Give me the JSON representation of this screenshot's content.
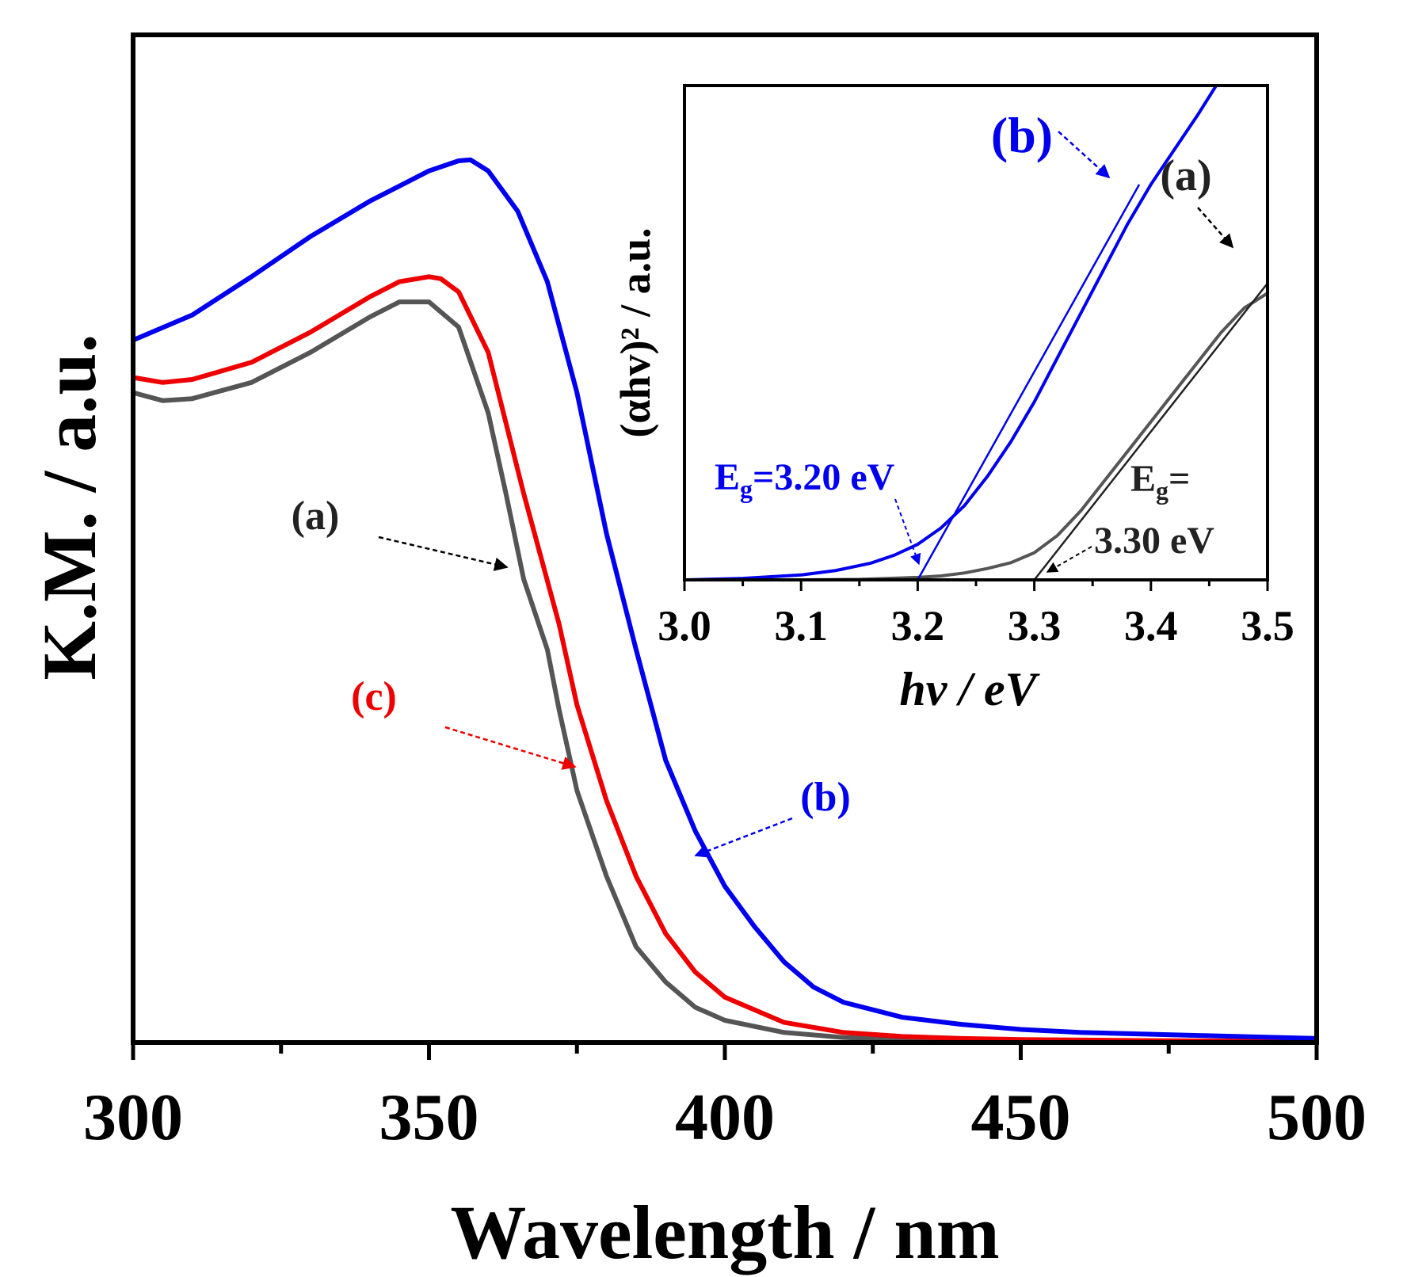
{
  "colors": {
    "a": "#555555",
    "b": "#0000ee",
    "c": "#ee0000",
    "axis": "#000000"
  },
  "chart_data": [
    {
      "type": "line",
      "xlabel": "Wavelength / nm",
      "ylabel": "K.M. / a.u.",
      "xlim": [
        300,
        500
      ],
      "ylim": [
        0,
        1
      ],
      "xticks": [
        "300",
        "350",
        "400",
        "450",
        "500"
      ],
      "series": [
        {
          "name": "(a)",
          "x": [
            300,
            305,
            310,
            320,
            330,
            340,
            345,
            350,
            355,
            360,
            363,
            366,
            370,
            372,
            375,
            380,
            385,
            390,
            395,
            400,
            410,
            420,
            430,
            440,
            450,
            470,
            500
          ],
          "y": [
            0.645,
            0.637,
            0.639,
            0.655,
            0.685,
            0.72,
            0.735,
            0.735,
            0.71,
            0.625,
            0.545,
            0.46,
            0.39,
            0.33,
            0.25,
            0.165,
            0.095,
            0.06,
            0.035,
            0.022,
            0.01,
            0.005,
            0.003,
            0.002,
            0.001,
            0.001,
            0.0
          ]
        },
        {
          "name": "(b)",
          "x": [
            300,
            310,
            320,
            330,
            340,
            350,
            355,
            357,
            360,
            365,
            370,
            375,
            380,
            385,
            390,
            395,
            400,
            405,
            410,
            415,
            420,
            430,
            440,
            450,
            460,
            480,
            500
          ],
          "y": [
            0.697,
            0.722,
            0.76,
            0.8,
            0.835,
            0.865,
            0.875,
            0.876,
            0.865,
            0.825,
            0.755,
            0.645,
            0.505,
            0.39,
            0.28,
            0.21,
            0.155,
            0.115,
            0.08,
            0.055,
            0.04,
            0.025,
            0.018,
            0.013,
            0.01,
            0.007,
            0.004
          ]
        },
        {
          "name": "(c)",
          "x": [
            300,
            305,
            310,
            320,
            330,
            340,
            345,
            350,
            352,
            355,
            360,
            363,
            366,
            369,
            372,
            375,
            380,
            385,
            390,
            395,
            400,
            410,
            420,
            430,
            440,
            450,
            470,
            500
          ],
          "y": [
            0.66,
            0.655,
            0.658,
            0.675,
            0.705,
            0.74,
            0.755,
            0.76,
            0.758,
            0.745,
            0.685,
            0.615,
            0.545,
            0.48,
            0.415,
            0.335,
            0.24,
            0.165,
            0.108,
            0.07,
            0.045,
            0.02,
            0.01,
            0.006,
            0.004,
            0.003,
            0.002,
            0.001
          ]
        }
      ],
      "annotations": [
        {
          "series": "(a)",
          "label": "(a)"
        },
        {
          "series": "(c)",
          "label": "(c)"
        },
        {
          "series": "(b)",
          "label": "(b)"
        }
      ]
    },
    {
      "type": "line",
      "role": "inset",
      "xlabel": "hv / eV",
      "ylabel": "(αhv)² / a.u.",
      "xlim": [
        3.0,
        3.5
      ],
      "ylim": [
        0,
        1
      ],
      "xticks": [
        "3.0",
        "3.1",
        "3.2",
        "3.3",
        "3.4",
        "3.5"
      ],
      "series": [
        {
          "name": "(a)",
          "x": [
            3.0,
            3.05,
            3.1,
            3.15,
            3.2,
            3.22,
            3.24,
            3.26,
            3.28,
            3.3,
            3.32,
            3.34,
            3.36,
            3.38,
            3.4,
            3.42,
            3.44,
            3.46,
            3.48,
            3.5
          ],
          "y": [
            0.0,
            0.0,
            0.0,
            0.001,
            0.005,
            0.008,
            0.014,
            0.023,
            0.035,
            0.055,
            0.09,
            0.14,
            0.2,
            0.26,
            0.32,
            0.38,
            0.44,
            0.5,
            0.55,
            0.58
          ]
        },
        {
          "name": "(b)",
          "x": [
            3.0,
            3.05,
            3.1,
            3.13,
            3.16,
            3.18,
            3.2,
            3.22,
            3.24,
            3.26,
            3.28,
            3.3,
            3.32,
            3.34,
            3.36,
            3.38,
            3.4,
            3.42,
            3.44,
            3.456
          ],
          "y": [
            0.0,
            0.003,
            0.01,
            0.019,
            0.034,
            0.05,
            0.072,
            0.105,
            0.15,
            0.21,
            0.28,
            0.36,
            0.45,
            0.54,
            0.63,
            0.72,
            0.8,
            0.87,
            0.94,
            1.0
          ]
        },
        {
          "name": "fit-b",
          "x": [
            3.2,
            3.39
          ],
          "y": [
            0.0,
            0.8
          ]
        },
        {
          "name": "fit-a",
          "x": [
            3.3,
            3.5
          ],
          "y": [
            0.0,
            0.6
          ]
        }
      ],
      "annotations": [
        {
          "series": "(b)",
          "label": "(b)"
        },
        {
          "series": "(a)",
          "label": "(a)"
        }
      ],
      "bandgaps": [
        {
          "series": "(b)",
          "prefix": "E",
          "sub": "g",
          "text": "=3.20 eV",
          "value_ev": 3.2
        },
        {
          "series": "(a)",
          "prefix": "E",
          "sub": "g",
          "text": "=",
          "line2": "3.30 eV",
          "value_ev": 3.3
        }
      ]
    }
  ]
}
